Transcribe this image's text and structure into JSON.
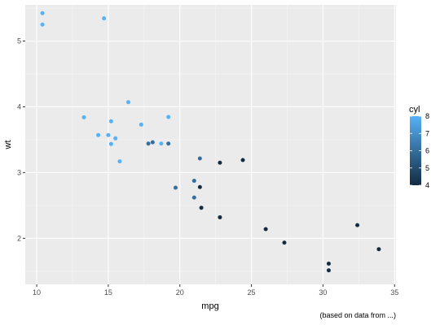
{
  "chart_data": {
    "type": "scatter",
    "title": "",
    "xlabel": "mpg",
    "ylabel": "wt",
    "caption": "(based on data from ...)",
    "xlim": [
      9.2,
      35.1
    ],
    "ylim": [
      1.3,
      5.55
    ],
    "x_ticks": [
      10,
      15,
      20,
      25,
      30,
      35
    ],
    "y_ticks": [
      2,
      3,
      4,
      5
    ],
    "grid": true,
    "legend": {
      "title": "cyl",
      "position": "right",
      "range": [
        4,
        8
      ],
      "ticks": [
        4,
        5,
        6,
        7,
        8
      ],
      "colors": {
        "low": "#132B43",
        "high": "#56B1F7"
      }
    },
    "points": [
      {
        "mpg": 21.0,
        "wt": 2.62,
        "cyl": 6
      },
      {
        "mpg": 21.0,
        "wt": 2.875,
        "cyl": 6
      },
      {
        "mpg": 22.8,
        "wt": 2.32,
        "cyl": 4
      },
      {
        "mpg": 21.4,
        "wt": 3.215,
        "cyl": 6
      },
      {
        "mpg": 18.7,
        "wt": 3.44,
        "cyl": 8
      },
      {
        "mpg": 18.1,
        "wt": 3.46,
        "cyl": 6
      },
      {
        "mpg": 14.3,
        "wt": 3.57,
        "cyl": 8
      },
      {
        "mpg": 24.4,
        "wt": 3.19,
        "cyl": 4
      },
      {
        "mpg": 22.8,
        "wt": 3.15,
        "cyl": 4
      },
      {
        "mpg": 19.2,
        "wt": 3.44,
        "cyl": 6
      },
      {
        "mpg": 17.8,
        "wt": 3.44,
        "cyl": 6
      },
      {
        "mpg": 16.4,
        "wt": 4.07,
        "cyl": 8
      },
      {
        "mpg": 17.3,
        "wt": 3.73,
        "cyl": 8
      },
      {
        "mpg": 15.2,
        "wt": 3.78,
        "cyl": 8
      },
      {
        "mpg": 10.4,
        "wt": 5.25,
        "cyl": 8
      },
      {
        "mpg": 10.4,
        "wt": 5.424,
        "cyl": 8
      },
      {
        "mpg": 14.7,
        "wt": 5.345,
        "cyl": 8
      },
      {
        "mpg": 32.4,
        "wt": 2.2,
        "cyl": 4
      },
      {
        "mpg": 30.4,
        "wt": 1.615,
        "cyl": 4
      },
      {
        "mpg": 33.9,
        "wt": 1.835,
        "cyl": 4
      },
      {
        "mpg": 21.5,
        "wt": 2.465,
        "cyl": 4
      },
      {
        "mpg": 15.5,
        "wt": 3.52,
        "cyl": 8
      },
      {
        "mpg": 15.2,
        "wt": 3.435,
        "cyl": 8
      },
      {
        "mpg": 13.3,
        "wt": 3.84,
        "cyl": 8
      },
      {
        "mpg": 19.2,
        "wt": 3.845,
        "cyl": 8
      },
      {
        "mpg": 27.3,
        "wt": 1.935,
        "cyl": 4
      },
      {
        "mpg": 26.0,
        "wt": 2.14,
        "cyl": 4
      },
      {
        "mpg": 30.4,
        "wt": 1.513,
        "cyl": 4
      },
      {
        "mpg": 15.8,
        "wt": 3.17,
        "cyl": 8
      },
      {
        "mpg": 19.7,
        "wt": 2.77,
        "cyl": 6
      },
      {
        "mpg": 15.0,
        "wt": 3.57,
        "cyl": 8
      },
      {
        "mpg": 21.4,
        "wt": 2.78,
        "cyl": 4
      }
    ]
  }
}
